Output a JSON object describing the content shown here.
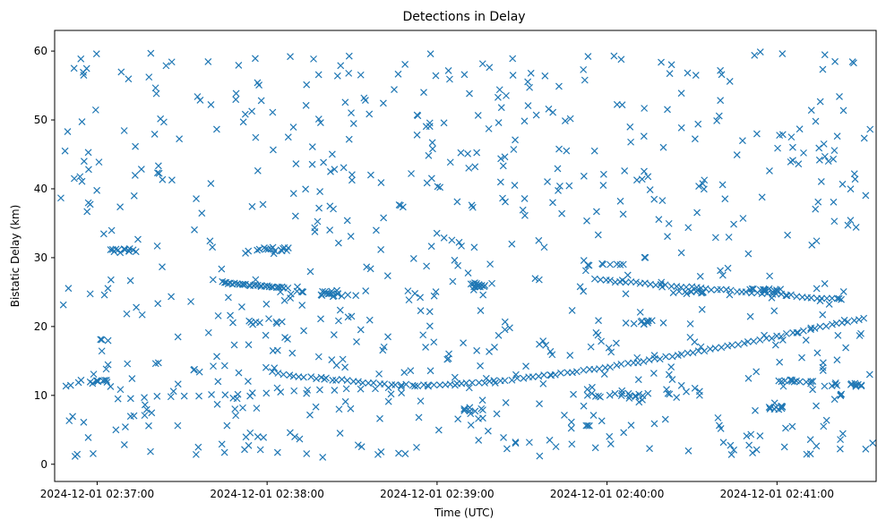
{
  "chart_data": {
    "type": "scatter",
    "title": "Detections in Delay",
    "xlabel": "Time (UTC)",
    "ylabel": "Bistatic Delay (km)",
    "marker": "x",
    "color": "#1f77b4",
    "x_unit": "seconds after 2024-12-01 02:36:00 UTC",
    "xlim": [
      45,
      335
    ],
    "ylim": [
      -2.5,
      63
    ],
    "xticks": [
      {
        "value": 60,
        "label": "2024-12-01 02:37:00"
      },
      {
        "value": 120,
        "label": "2024-12-01 02:38:00"
      },
      {
        "value": 180,
        "label": "2024-12-01 02:39:00"
      },
      {
        "value": 240,
        "label": "2024-12-01 02:40:00"
      },
      {
        "value": 300,
        "label": "2024-12-01 02:41:00"
      }
    ],
    "yticks": [
      0,
      10,
      20,
      30,
      40,
      50,
      60
    ],
    "grid": false,
    "legend": "none",
    "tracks": [
      {
        "description": "target track",
        "x_range": [
          67,
          177
        ],
        "y_start": 9.5,
        "y_end": 11.4,
        "points": 24
      },
      {
        "description": "target track",
        "x_range": [
          177,
          331
        ],
        "y_start": 11.4,
        "y_end": 21.3,
        "points": 80
      },
      {
        "description": "target track",
        "x_range": [
          104,
          127
        ],
        "y_start": 26.4,
        "y_end": 25.6,
        "points": 30
      },
      {
        "description": "target track",
        "x_range": [
          236,
          323
        ],
        "y_start": 26.8,
        "y_end": 23.9,
        "points": 50
      }
    ],
    "clutter": {
      "description": "scattered detections",
      "x_range": [
        47,
        334
      ],
      "y_range": [
        1,
        60
      ],
      "points": 720
    }
  }
}
